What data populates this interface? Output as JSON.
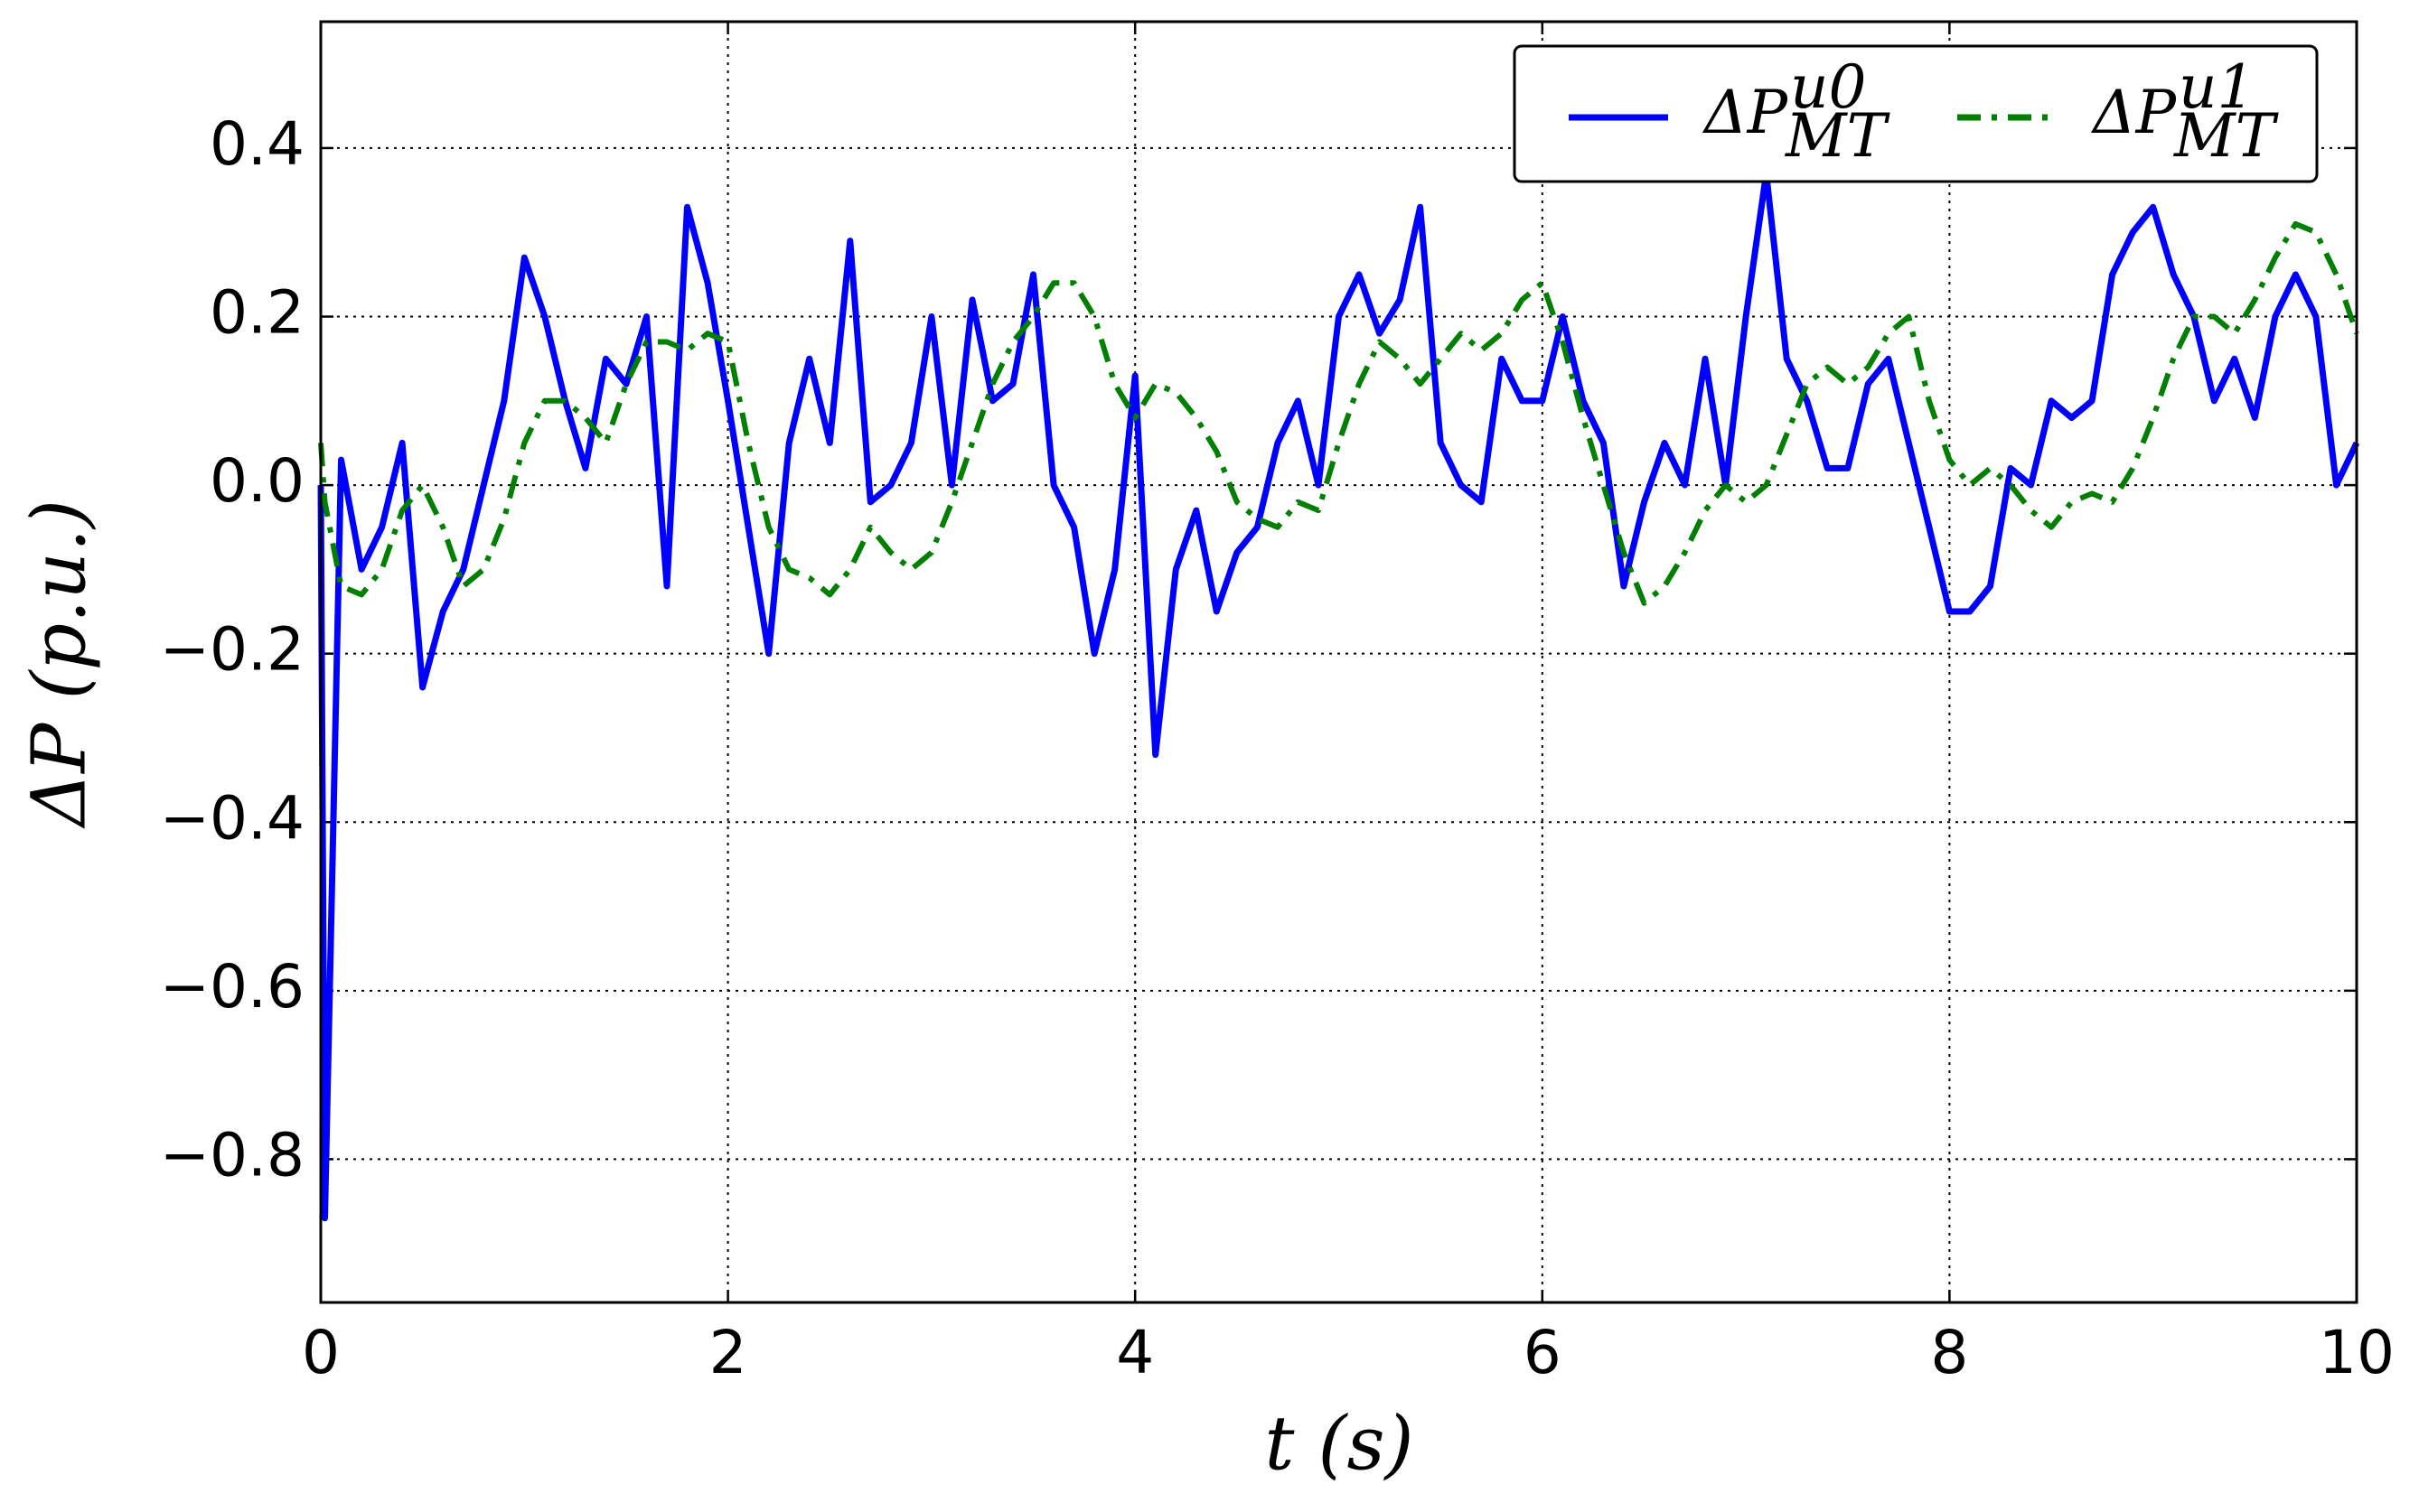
{
  "chart_data": {
    "type": "line",
    "xlabel": "t (s)",
    "ylabel": "ΔP (p.u.)",
    "x": [
      0,
      0.02,
      0.1,
      0.2,
      0.3,
      0.4,
      0.5,
      0.6,
      0.7,
      0.8,
      0.9,
      1.0,
      1.1,
      1.2,
      1.3,
      1.4,
      1.5,
      1.6,
      1.7,
      1.8,
      1.9,
      2.0,
      2.1,
      2.2,
      2.3,
      2.4,
      2.5,
      2.6,
      2.7,
      2.8,
      2.9,
      3.0,
      3.1,
      3.2,
      3.3,
      3.4,
      3.5,
      3.6,
      3.7,
      3.8,
      3.9,
      4.0,
      4.1,
      4.2,
      4.3,
      4.4,
      4.5,
      4.6,
      4.7,
      4.8,
      4.9,
      5.0,
      5.1,
      5.2,
      5.3,
      5.4,
      5.5,
      5.6,
      5.7,
      5.8,
      5.9,
      6.0,
      6.1,
      6.2,
      6.3,
      6.4,
      6.5,
      6.6,
      6.7,
      6.8,
      6.9,
      7.0,
      7.1,
      7.2,
      7.3,
      7.4,
      7.5,
      7.6,
      7.7,
      7.8,
      7.9,
      8.0,
      8.1,
      8.2,
      8.3,
      8.4,
      8.5,
      8.6,
      8.7,
      8.8,
      8.9,
      9.0,
      9.1,
      9.2,
      9.3,
      9.4,
      9.5,
      9.6,
      9.7,
      9.8,
      9.9,
      10
    ],
    "series": [
      {
        "name": "ΔP",
        "sub": "MT",
        "sup": "u0",
        "color": "#0000ff",
        "style": "solid",
        "values": [
          0.0,
          -0.87,
          0.03,
          -0.1,
          -0.05,
          0.05,
          -0.24,
          -0.15,
          -0.1,
          0.0,
          0.1,
          0.27,
          0.2,
          0.1,
          0.02,
          0.15,
          0.12,
          0.2,
          -0.12,
          0.33,
          0.24,
          0.1,
          -0.05,
          -0.2,
          0.05,
          0.15,
          0.05,
          0.29,
          -0.02,
          0.0,
          0.05,
          0.2,
          0.0,
          0.22,
          0.1,
          0.12,
          0.25,
          0.0,
          -0.05,
          -0.2,
          -0.1,
          0.13,
          -0.32,
          -0.1,
          -0.03,
          -0.15,
          -0.08,
          -0.05,
          0.05,
          0.1,
          0.0,
          0.2,
          0.25,
          0.18,
          0.22,
          0.33,
          0.05,
          0.0,
          -0.02,
          0.15,
          0.1,
          0.1,
          0.2,
          0.1,
          0.05,
          -0.12,
          -0.02,
          0.05,
          0.0,
          0.15,
          0.0,
          0.2,
          0.37,
          0.15,
          0.1,
          0.02,
          0.02,
          0.12,
          0.15,
          0.05,
          -0.05,
          -0.15,
          -0.15,
          -0.12,
          0.02,
          0.0,
          0.1,
          0.08,
          0.1,
          0.25,
          0.3,
          0.33,
          0.25,
          0.2,
          0.1,
          0.15,
          0.08,
          0.2,
          0.25,
          0.2,
          0.0,
          0.05
        ]
      },
      {
        "name": "ΔP",
        "sub": "MT",
        "sup": "u1",
        "color": "#007f00",
        "style": "dashdot",
        "values": [
          0.05,
          -0.02,
          -0.12,
          -0.13,
          -0.1,
          -0.03,
          0.0,
          -0.05,
          -0.12,
          -0.1,
          -0.04,
          0.05,
          0.1,
          0.1,
          0.08,
          0.05,
          0.12,
          0.17,
          0.17,
          0.16,
          0.18,
          0.17,
          0.05,
          -0.05,
          -0.1,
          -0.11,
          -0.13,
          -0.1,
          -0.05,
          -0.08,
          -0.1,
          -0.08,
          -0.02,
          0.05,
          0.12,
          0.17,
          0.2,
          0.24,
          0.24,
          0.2,
          0.12,
          0.08,
          0.12,
          0.11,
          0.08,
          0.04,
          -0.02,
          -0.04,
          -0.05,
          -0.02,
          -0.03,
          0.05,
          0.12,
          0.17,
          0.15,
          0.12,
          0.15,
          0.18,
          0.16,
          0.18,
          0.22,
          0.24,
          0.17,
          0.08,
          0.0,
          -0.08,
          -0.14,
          -0.12,
          -0.08,
          -0.03,
          0.0,
          -0.02,
          0.0,
          0.06,
          0.12,
          0.14,
          0.12,
          0.14,
          0.18,
          0.2,
          0.1,
          0.03,
          0.0,
          0.02,
          0.0,
          -0.03,
          -0.05,
          -0.02,
          -0.01,
          -0.02,
          0.02,
          0.08,
          0.15,
          0.2,
          0.2,
          0.18,
          0.22,
          0.27,
          0.31,
          0.3,
          0.25,
          0.18
        ]
      }
    ],
    "xlim": [
      0,
      10
    ],
    "xticks": [
      0,
      2,
      4,
      6,
      8,
      10
    ],
    "ylim": [
      -0.97,
      0.55
    ],
    "yticks": [
      {
        "value": -0.8,
        "label": "−0.8"
      },
      {
        "value": -0.6,
        "label": "−0.6"
      },
      {
        "value": -0.4,
        "label": "−0.4"
      },
      {
        "value": -0.2,
        "label": "−0.2"
      },
      {
        "value": 0,
        "label": "0.0"
      },
      0.2,
      0.4
    ],
    "grid": true,
    "legend": "upper right"
  }
}
